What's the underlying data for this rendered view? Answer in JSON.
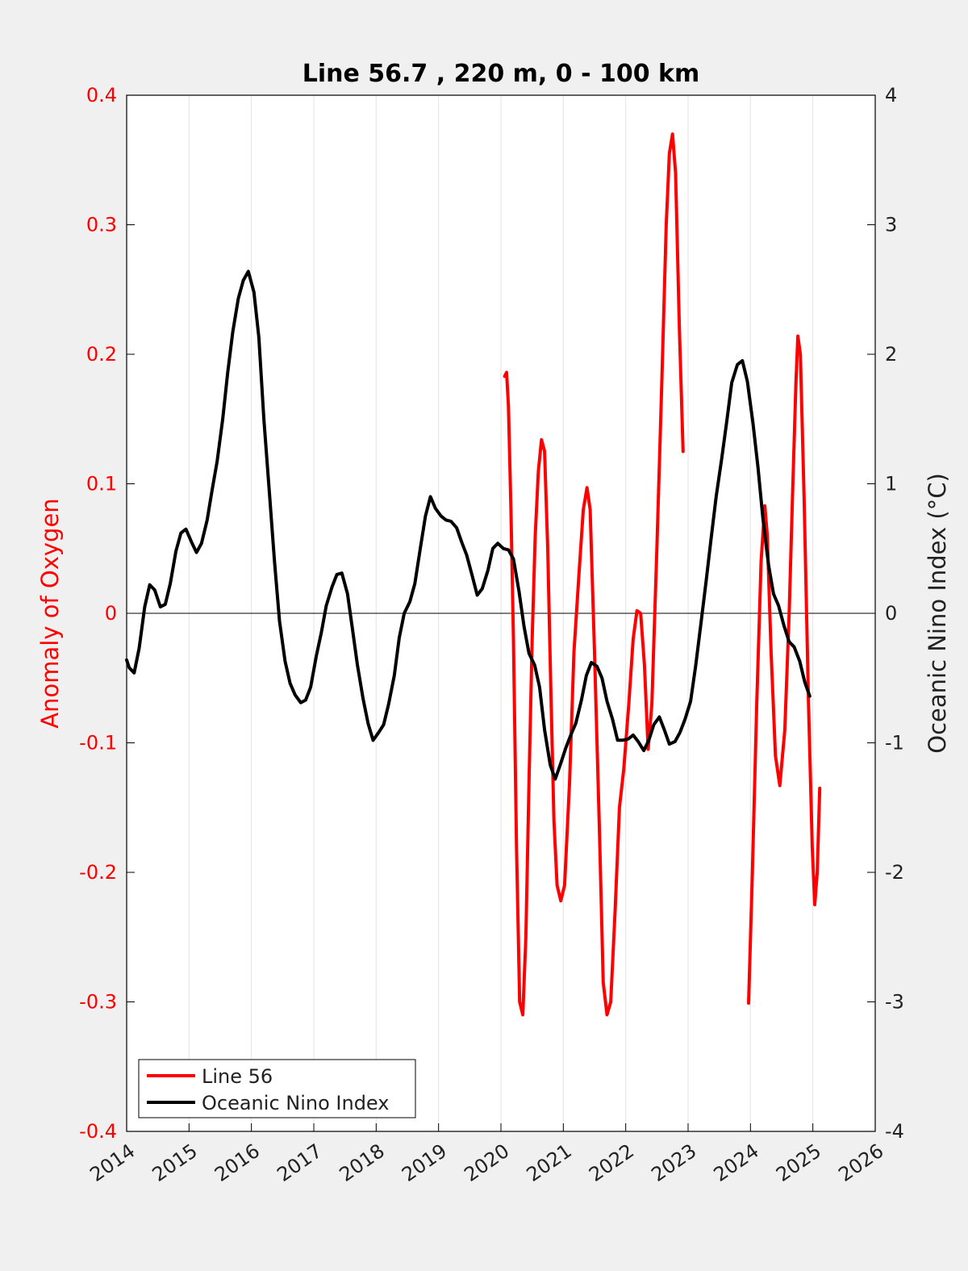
{
  "chart_data": {
    "type": "line",
    "title": "Line 56.7 , 220 m, 0 - 100 km",
    "xlabel": "",
    "xlim": [
      2014,
      2026
    ],
    "x_ticks": [
      "2014",
      "2015",
      "2016",
      "2017",
      "2018",
      "2019",
      "2020",
      "2021",
      "2022",
      "2023",
      "2024",
      "2025",
      "2026"
    ],
    "ylabel_left": "Anomaly of Oxygen",
    "ylim_left": [
      -0.4,
      0.4
    ],
    "y_ticks_left": [
      "-0.4",
      "-0.3",
      "-0.2",
      "-0.1",
      "0",
      "0.1",
      "0.2",
      "0.3",
      "0.4"
    ],
    "ylabel_right": "Oceanic Nino Index (°C)",
    "ylim_right": [
      -4,
      4
    ],
    "y_ticks_right": [
      "-4",
      "-3",
      "-2",
      "-1",
      "0",
      "1",
      "2",
      "3",
      "4"
    ],
    "grid": "vertical",
    "legend_position": "bottom-left",
    "series": [
      {
        "name": "Line 56",
        "axis": "left",
        "color": "#ff0000",
        "segments": [
          [
            [
              2020.06,
              0.183
            ],
            [
              2020.09,
              0.186
            ],
            [
              2020.12,
              0.16
            ],
            [
              2020.16,
              0.08
            ],
            [
              2020.2,
              -0.02
            ],
            [
              2020.25,
              -0.18
            ],
            [
              2020.3,
              -0.3
            ],
            [
              2020.35,
              -0.31
            ],
            [
              2020.4,
              -0.25
            ],
            [
              2020.45,
              -0.13
            ],
            [
              2020.5,
              -0.02
            ],
            [
              2020.55,
              0.06
            ],
            [
              2020.6,
              0.11
            ],
            [
              2020.65,
              0.134
            ],
            [
              2020.7,
              0.125
            ],
            [
              2020.75,
              0.05
            ],
            [
              2020.8,
              -0.06
            ],
            [
              2020.85,
              -0.16
            ],
            [
              2020.9,
              -0.21
            ],
            [
              2020.96,
              -0.222
            ],
            [
              2021.02,
              -0.21
            ],
            [
              2021.1,
              -0.13
            ],
            [
              2021.17,
              -0.03
            ],
            [
              2021.25,
              0.03
            ],
            [
              2021.32,
              0.08
            ],
            [
              2021.38,
              0.097
            ],
            [
              2021.43,
              0.08
            ],
            [
              2021.5,
              -0.03
            ],
            [
              2021.58,
              -0.17
            ],
            [
              2021.64,
              -0.285
            ],
            [
              2021.7,
              -0.31
            ],
            [
              2021.76,
              -0.3
            ],
            [
              2021.83,
              -0.23
            ],
            [
              2021.9,
              -0.15
            ],
            [
              2021.97,
              -0.12
            ],
            [
              2022.05,
              -0.07
            ],
            [
              2022.12,
              -0.02
            ],
            [
              2022.18,
              0.002
            ],
            [
              2022.24,
              0.0
            ],
            [
              2022.3,
              -0.04
            ],
            [
              2022.36,
              -0.105
            ],
            [
              2022.42,
              -0.07
            ],
            [
              2022.5,
              0.05
            ],
            [
              2022.58,
              0.18
            ],
            [
              2022.65,
              0.3
            ],
            [
              2022.7,
              0.355
            ],
            [
              2022.75,
              0.37
            ],
            [
              2022.8,
              0.34
            ],
            [
              2022.86,
              0.22
            ],
            [
              2022.92,
              0.125
            ]
          ],
          [
            [
              2023.97,
              -0.301
            ],
            [
              2024.03,
              -0.2
            ],
            [
              2024.1,
              -0.07
            ],
            [
              2024.17,
              0.04
            ],
            [
              2024.23,
              0.083
            ],
            [
              2024.27,
              0.06
            ],
            [
              2024.33,
              -0.03
            ],
            [
              2024.4,
              -0.11
            ],
            [
              2024.47,
              -0.133
            ],
            [
              2024.55,
              -0.09
            ],
            [
              2024.62,
              0.0
            ],
            [
              2024.68,
              0.1
            ],
            [
              2024.73,
              0.18
            ],
            [
              2024.76,
              0.214
            ],
            [
              2024.8,
              0.2
            ],
            [
              2024.86,
              0.09
            ],
            [
              2024.93,
              -0.07
            ],
            [
              2024.99,
              -0.18
            ],
            [
              2025.03,
              -0.225
            ],
            [
              2025.07,
              -0.2
            ],
            [
              2025.11,
              -0.135
            ]
          ]
        ]
      },
      {
        "name": "Oceanic Nino Index",
        "axis": "right",
        "color": "#000000",
        "segments": [
          [
            [
              2014.0,
              -0.36
            ],
            [
              2014.04,
              -0.42
            ],
            [
              2014.12,
              -0.46
            ],
            [
              2014.2,
              -0.27
            ],
            [
              2014.29,
              0.05
            ],
            [
              2014.37,
              0.22
            ],
            [
              2014.45,
              0.18
            ],
            [
              2014.54,
              0.05
            ],
            [
              2014.62,
              0.07
            ],
            [
              2014.7,
              0.23
            ],
            [
              2014.79,
              0.48
            ],
            [
              2014.87,
              0.62
            ],
            [
              2014.95,
              0.65
            ],
            [
              2015.04,
              0.55
            ],
            [
              2015.12,
              0.47
            ],
            [
              2015.2,
              0.54
            ],
            [
              2015.29,
              0.72
            ],
            [
              2015.37,
              0.95
            ],
            [
              2015.45,
              1.17
            ],
            [
              2015.54,
              1.5
            ],
            [
              2015.62,
              1.86
            ],
            [
              2015.7,
              2.17
            ],
            [
              2015.79,
              2.43
            ],
            [
              2015.87,
              2.57
            ],
            [
              2015.95,
              2.64
            ],
            [
              2016.04,
              2.48
            ],
            [
              2016.12,
              2.13
            ],
            [
              2016.2,
              1.5
            ],
            [
              2016.29,
              0.92
            ],
            [
              2016.37,
              0.4
            ],
            [
              2016.45,
              -0.06
            ],
            [
              2016.54,
              -0.37
            ],
            [
              2016.62,
              -0.54
            ],
            [
              2016.7,
              -0.63
            ],
            [
              2016.79,
              -0.69
            ],
            [
              2016.87,
              -0.67
            ],
            [
              2016.95,
              -0.57
            ],
            [
              2017.04,
              -0.33
            ],
            [
              2017.12,
              -0.15
            ],
            [
              2017.2,
              0.06
            ],
            [
              2017.29,
              0.2
            ],
            [
              2017.37,
              0.3
            ],
            [
              2017.45,
              0.31
            ],
            [
              2017.54,
              0.15
            ],
            [
              2017.62,
              -0.12
            ],
            [
              2017.7,
              -0.4
            ],
            [
              2017.79,
              -0.66
            ],
            [
              2017.87,
              -0.85
            ],
            [
              2017.95,
              -0.98
            ],
            [
              2018.04,
              -0.92
            ],
            [
              2018.12,
              -0.86
            ],
            [
              2018.2,
              -0.7
            ],
            [
              2018.29,
              -0.48
            ],
            [
              2018.37,
              -0.19
            ],
            [
              2018.45,
              0.0
            ],
            [
              2018.54,
              0.09
            ],
            [
              2018.62,
              0.23
            ],
            [
              2018.7,
              0.48
            ],
            [
              2018.79,
              0.75
            ],
            [
              2018.87,
              0.9
            ],
            [
              2018.95,
              0.81
            ],
            [
              2019.04,
              0.75
            ],
            [
              2019.12,
              0.72
            ],
            [
              2019.2,
              0.71
            ],
            [
              2019.29,
              0.66
            ],
            [
              2019.37,
              0.55
            ],
            [
              2019.45,
              0.45
            ],
            [
              2019.54,
              0.29
            ],
            [
              2019.62,
              0.14
            ],
            [
              2019.7,
              0.19
            ],
            [
              2019.79,
              0.33
            ],
            [
              2019.87,
              0.5
            ],
            [
              2019.95,
              0.54
            ],
            [
              2020.04,
              0.5
            ],
            [
              2020.12,
              0.49
            ],
            [
              2020.2,
              0.42
            ],
            [
              2020.29,
              0.17
            ],
            [
              2020.37,
              -0.1
            ],
            [
              2020.45,
              -0.31
            ],
            [
              2020.54,
              -0.4
            ],
            [
              2020.62,
              -0.57
            ],
            [
              2020.7,
              -0.9
            ],
            [
              2020.79,
              -1.17
            ],
            [
              2020.87,
              -1.28
            ],
            [
              2020.95,
              -1.17
            ],
            [
              2021.04,
              -1.04
            ],
            [
              2021.12,
              -0.94
            ],
            [
              2021.2,
              -0.85
            ],
            [
              2021.29,
              -0.67
            ],
            [
              2021.37,
              -0.48
            ],
            [
              2021.45,
              -0.38
            ],
            [
              2021.54,
              -0.41
            ],
            [
              2021.62,
              -0.5
            ],
            [
              2021.7,
              -0.68
            ],
            [
              2021.79,
              -0.82
            ],
            [
              2021.87,
              -0.98
            ],
            [
              2021.95,
              -0.98
            ],
            [
              2022.04,
              -0.97
            ],
            [
              2022.12,
              -0.94
            ],
            [
              2022.2,
              -0.99
            ],
            [
              2022.29,
              -1.06
            ],
            [
              2022.37,
              -0.98
            ],
            [
              2022.45,
              -0.86
            ],
            [
              2022.54,
              -0.8
            ],
            [
              2022.62,
              -0.9
            ],
            [
              2022.7,
              -1.01
            ],
            [
              2022.79,
              -0.99
            ],
            [
              2022.87,
              -0.92
            ],
            [
              2022.95,
              -0.82
            ],
            [
              2023.04,
              -0.68
            ],
            [
              2023.12,
              -0.41
            ],
            [
              2023.2,
              -0.1
            ],
            [
              2023.29,
              0.25
            ],
            [
              2023.37,
              0.58
            ],
            [
              2023.45,
              0.9
            ],
            [
              2023.54,
              1.2
            ],
            [
              2023.62,
              1.48
            ],
            [
              2023.7,
              1.78
            ],
            [
              2023.79,
              1.92
            ],
            [
              2023.87,
              1.95
            ],
            [
              2023.95,
              1.79
            ],
            [
              2024.04,
              1.47
            ],
            [
              2024.12,
              1.13
            ],
            [
              2024.2,
              0.73
            ],
            [
              2024.29,
              0.37
            ],
            [
              2024.37,
              0.15
            ],
            [
              2024.45,
              0.06
            ],
            [
              2024.54,
              -0.1
            ],
            [
              2024.62,
              -0.22
            ],
            [
              2024.7,
              -0.26
            ],
            [
              2024.79,
              -0.37
            ],
            [
              2024.87,
              -0.53
            ],
            [
              2024.95,
              -0.64
            ]
          ]
        ]
      }
    ]
  }
}
